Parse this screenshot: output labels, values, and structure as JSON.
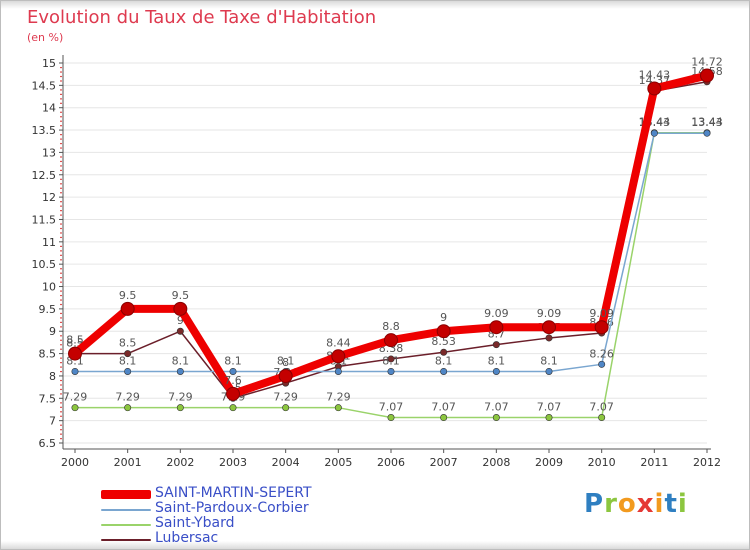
{
  "title": "Evolution du Taux de Taxe d'Habitation",
  "subtitle": "(en %)",
  "colors": {
    "title": "#de3a4f",
    "axis": "#555555",
    "grid": "#e6e6e6"
  },
  "brand": {
    "letters": [
      "P",
      "r",
      "o",
      "x",
      "i",
      "t",
      "i"
    ],
    "colors": [
      "#2f7fc1",
      "#8cc63f",
      "#f29a1f",
      "#e53935",
      "#f29a1f",
      "#2f7fc1",
      "#8cc63f"
    ]
  },
  "chart_data": {
    "type": "line",
    "title": "Evolution du Taux de Taxe d'Habitation",
    "ylabel": "(en %)",
    "xlabel": "",
    "categories": [
      "2000",
      "2001",
      "2002",
      "2003",
      "2004",
      "2005",
      "2006",
      "2007",
      "2008",
      "2009",
      "2010",
      "2011",
      "2012"
    ],
    "ylim": [
      6.5,
      15
    ],
    "ytick_step": 0.5,
    "yticks": [
      "6.5",
      "7",
      "7.5",
      "8",
      "8.5",
      "9",
      "9.5",
      "10",
      "10.5",
      "11",
      "11.5",
      "12",
      "12.5",
      "13",
      "13.5",
      "14",
      "14.5",
      "15"
    ],
    "grid": true,
    "legend_position": "bottom-left",
    "series": [
      {
        "name": "Lubersac",
        "color": "#6b1f2a",
        "point_color": "#7a2a2a",
        "emphasis": false,
        "values": [
          8.5,
          8.5,
          9,
          7.5,
          7.84,
          8.21,
          8.38,
          8.53,
          8.7,
          8.85,
          8.96,
          14.37,
          14.58
        ],
        "labels": [
          "8.5",
          "8.5",
          "9",
          "7.5",
          "7.84",
          "8.21",
          "8.38",
          "8.53",
          "8.7",
          "8.85",
          "8.96",
          "14.37",
          "14.58"
        ]
      },
      {
        "name": "Saint-Ybard",
        "color": "#9ad36a",
        "point_color": "#8cc63f",
        "emphasis": false,
        "values": [
          7.29,
          7.29,
          7.29,
          7.29,
          7.29,
          7.29,
          7.07,
          7.07,
          7.07,
          7.07,
          7.07,
          13.44,
          13.44
        ],
        "labels": [
          "7.29",
          "7.29",
          "7.29",
          "7.29",
          "7.29",
          "7.29",
          "7.07",
          "7.07",
          "7.07",
          "7.07",
          "7.07",
          "13.44",
          "13.44"
        ]
      },
      {
        "name": "Saint-Pardoux-Corbier",
        "color": "#7aa6d0",
        "point_color": "#4f86c6",
        "emphasis": false,
        "values": [
          8.1,
          8.1,
          8.1,
          8.1,
          8.1,
          8.1,
          8.1,
          8.1,
          8.1,
          8.1,
          8.26,
          13.43,
          13.43
        ],
        "labels": [
          "8.1",
          "8.1",
          "8.1",
          "8.1",
          "8.1",
          "8.1",
          "8.1",
          "8.1",
          "8.1",
          "8.1",
          "8.26",
          "13.43",
          "13.43"
        ]
      },
      {
        "name": "SAINT-MARTIN-SEPERT",
        "color": "#ee0000",
        "point_color": "#c40000",
        "emphasis": true,
        "values": [
          8.5,
          9.5,
          9.5,
          7.6,
          8,
          8.44,
          8.8,
          9,
          9.09,
          9.09,
          9.09,
          14.43,
          14.72
        ],
        "labels": [
          "8.5",
          "9.5",
          "9.5",
          "7.6",
          "8",
          "8.44",
          "8.8",
          "9",
          "9.09",
          "9.09",
          "9.09",
          "14.43",
          "14.72"
        ]
      }
    ]
  }
}
